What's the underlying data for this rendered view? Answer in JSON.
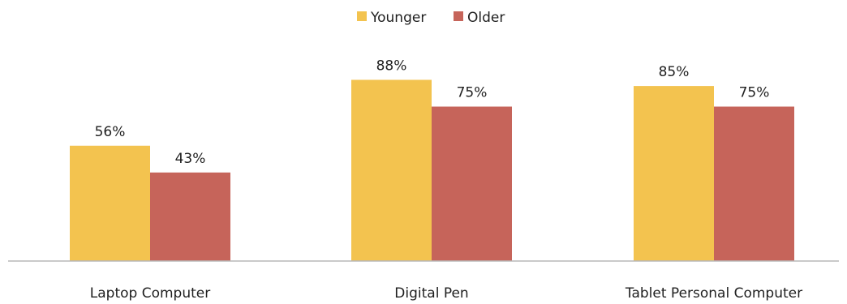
{
  "chart_data": {
    "type": "bar",
    "categories": [
      "Laptop Computer",
      "Digital Pen",
      "Tablet Personal Computer"
    ],
    "series": [
      {
        "name": "Younger",
        "values": [
          56,
          88,
          85
        ],
        "color": "#f3c34f"
      },
      {
        "name": "Older",
        "values": [
          43,
          75,
          75
        ],
        "color": "#c6645a"
      }
    ],
    "value_suffix": "%",
    "ylim": [
      0,
      100
    ],
    "grid": false,
    "legend_position": "top-center",
    "title": "",
    "xlabel": "",
    "ylabel": ""
  }
}
